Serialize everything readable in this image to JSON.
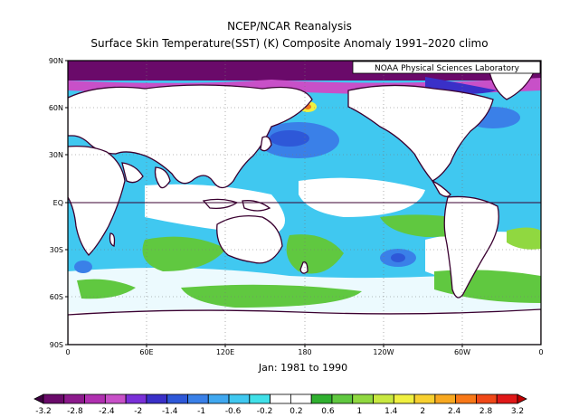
{
  "titles": {
    "line1": "NCEP/NCAR Reanalysis",
    "line2": "Surface Skin Temperature(SST) (K) Composite Anomaly 1991–2020 climo"
  },
  "credit": "NOAA Physical Sciences Laboratory",
  "period": "Jan: 1981 to 1990",
  "lat_labels": [
    "90N",
    "60N",
    "30N",
    "EQ",
    "30S",
    "60S",
    "90S"
  ],
  "lon_labels": [
    "0",
    "60E",
    "120E",
    "180",
    "120W",
    "60W",
    "0"
  ],
  "colorbar": {
    "labels": [
      "-3.2",
      "-2.8",
      "-2.4",
      "-2",
      "-1.4",
      "-1",
      "-0.6",
      "-0.2",
      "0.2",
      "0.6",
      "1",
      "1.4",
      "2",
      "2.4",
      "2.8",
      "3.2"
    ],
    "colors": [
      "#3d0040",
      "#6a0a6a",
      "#8c1a8c",
      "#b030b0",
      "#c850c8",
      "#7a30d8",
      "#3a30c8",
      "#2e58d8",
      "#3a80e8",
      "#40a8f0",
      "#40c8f0",
      "#40e0e8",
      "#ffffff",
      "#ffffff",
      "#30b030",
      "#60c840",
      "#90d840",
      "#c8e840",
      "#f0f040",
      "#f8d030",
      "#f8a820",
      "#f87818",
      "#f04818",
      "#e01818",
      "#c00000"
    ]
  },
  "map": {
    "type": "filled-contour-map",
    "projection": "equirectangular",
    "lon_range": [
      0,
      360
    ],
    "lat_range": [
      -90,
      90
    ],
    "variable": "Surface Skin Temperature anomaly (K)",
    "grid": "dotted"
  },
  "colors": {
    "ocean_cold_light": "#40c8f0",
    "ocean_cold_mid": "#3a80e8",
    "ocean_cold_deep": "#2e58d8",
    "ocean_warm": "#60c840",
    "land": "#ffffff",
    "coast": "#3a0030"
  }
}
